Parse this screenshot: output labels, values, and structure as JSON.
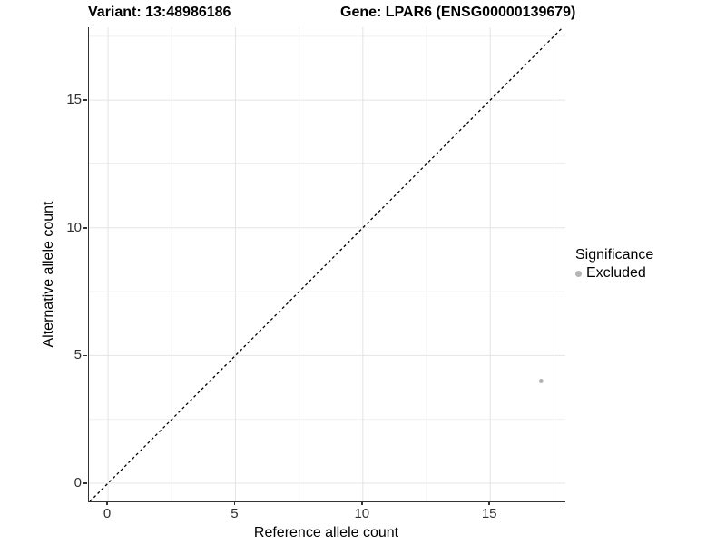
{
  "title": {
    "variant": "Variant: 13:48986186",
    "gene": "Gene: LPAR6 (ENSG00000139679)"
  },
  "axes": {
    "x_label": "Reference allele count",
    "y_label": "Alternative allele count"
  },
  "legend": {
    "title": "Significance",
    "items": [
      {
        "label": "Excluded",
        "color": "#b5b5b5"
      }
    ]
  },
  "colors": {
    "axis_line": "#333333",
    "tick_text": "#303030",
    "grid_major": "#e4e4e4",
    "grid_minor": "#efefef",
    "reference_line": "#000000",
    "point": "#b5b5b5",
    "background": "#ffffff"
  },
  "chart_data": {
    "type": "scatter",
    "title": "Variant: 13:48986186 — Gene: LPAR6 (ENSG00000139679)",
    "xlabel": "Reference allele count",
    "ylabel": "Alternative allele count",
    "xlim": [
      -0.75,
      17.95
    ],
    "ylim": [
      -0.71,
      17.85
    ],
    "x_major_ticks": [
      0,
      5,
      10,
      15
    ],
    "y_major_ticks": [
      0,
      5,
      10,
      15
    ],
    "x_minor_ticks": [
      2.5,
      7.5,
      12.5,
      17.5
    ],
    "y_minor_ticks": [
      2.5,
      7.5,
      12.5,
      17.5
    ],
    "grid": "major+minor",
    "legend_position": "right",
    "reference_line": {
      "type": "identity",
      "equation": "y = x",
      "style": "dashed",
      "color": "#000000"
    },
    "series": [
      {
        "name": "Excluded",
        "color": "#b5b5b5",
        "marker": "circle",
        "points": [
          {
            "x": 17,
            "y": 4
          }
        ]
      }
    ]
  }
}
